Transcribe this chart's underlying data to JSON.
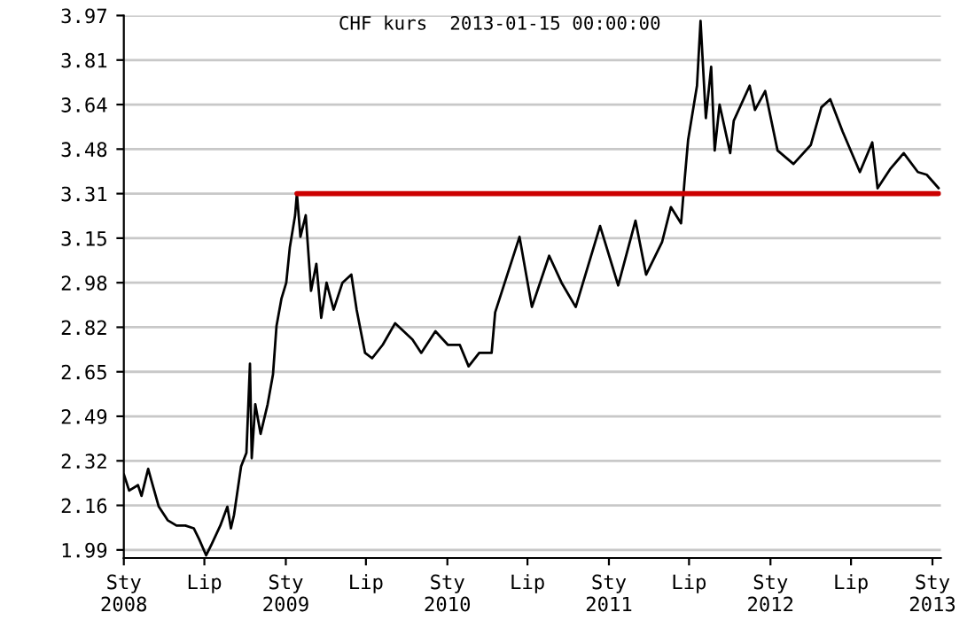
{
  "chart_data": {
    "type": "line",
    "title": "CHF kurs  2013-01-15 00:00:00",
    "series": [
      {
        "color": "#000000",
        "x": [
          "2008-01-01",
          "2008-01-13",
          "2008-02-02",
          "2008-02-10",
          "2008-02-25",
          "2008-03-08",
          "2008-03-20",
          "2008-04-09",
          "2008-04-29",
          "2008-05-19",
          "2008-06-07",
          "2008-06-19",
          "2008-07-05",
          "2008-07-17",
          "2008-08-06",
          "2008-08-22",
          "2008-08-30",
          "2008-09-06",
          "2008-09-22",
          "2008-10-04",
          "2008-10-12",
          "2008-10-16",
          "2008-10-24",
          "2008-11-05",
          "2008-11-21",
          "2008-12-03",
          "2008-12-11",
          "2008-12-22",
          "2009-01-02",
          "2009-01-10",
          "2009-01-22",
          "2009-01-26",
          "2009-02-03",
          "2009-02-15",
          "2009-02-27",
          "2009-03-11",
          "2009-03-22",
          "2009-04-03",
          "2009-04-19",
          "2009-05-09",
          "2009-05-29",
          "2009-06-10",
          "2009-06-29",
          "2009-07-15",
          "2009-08-08",
          "2009-09-05",
          "2009-10-14",
          "2009-11-03",
          "2009-12-05",
          "2010-01-02",
          "2010-01-29",
          "2010-02-18",
          "2010-03-14",
          "2010-04-11",
          "2010-04-19",
          "2010-06-13",
          "2010-07-11",
          "2010-08-19",
          "2010-09-16",
          "2010-10-18",
          "2010-12-12",
          "2011-01-22",
          "2011-03-02",
          "2011-03-26",
          "2011-05-01",
          "2011-05-21",
          "2011-06-13",
          "2011-06-21",
          "2011-06-29",
          "2011-07-19",
          "2011-07-27",
          "2011-08-08",
          "2011-08-20",
          "2011-08-28",
          "2011-09-08",
          "2011-10-02",
          "2011-10-10",
          "2011-11-15",
          "2011-11-27",
          "2011-12-20",
          "2012-01-17",
          "2012-02-22",
          "2012-04-01",
          "2012-04-25",
          "2012-05-15",
          "2012-06-12",
          "2012-07-21",
          "2012-08-18",
          "2012-08-30",
          "2012-09-27",
          "2012-10-28",
          "2012-11-29",
          "2012-12-19",
          "2013-01-15"
        ],
        "values": [
          2.27,
          2.21,
          2.23,
          2.19,
          2.29,
          2.22,
          2.15,
          2.1,
          2.08,
          2.08,
          2.07,
          2.03,
          1.97,
          2.01,
          2.08,
          2.15,
          2.07,
          2.12,
          2.3,
          2.35,
          2.68,
          2.33,
          2.53,
          2.42,
          2.53,
          2.64,
          2.82,
          2.92,
          2.98,
          3.11,
          3.23,
          3.31,
          3.15,
          3.23,
          2.95,
          3.05,
          2.85,
          2.98,
          2.88,
          2.98,
          3.01,
          2.88,
          2.72,
          2.7,
          2.75,
          2.83,
          2.77,
          2.72,
          2.8,
          2.75,
          2.75,
          2.67,
          2.72,
          2.72,
          2.87,
          3.15,
          2.89,
          3.08,
          2.98,
          2.89,
          3.19,
          2.97,
          3.21,
          3.01,
          3.13,
          3.26,
          3.2,
          3.36,
          3.51,
          3.71,
          3.95,
          3.59,
          3.78,
          3.47,
          3.64,
          3.46,
          3.58,
          3.71,
          3.62,
          3.69,
          3.47,
          3.42,
          3.49,
          3.63,
          3.66,
          3.54,
          3.39,
          3.5,
          3.33,
          3.4,
          3.46,
          3.39,
          3.38,
          3.33
        ]
      },
      {
        "color": "#cc0000",
        "x": [
          "2009-01-26",
          "2013-01-15"
        ],
        "values": [
          3.31,
          3.31
        ]
      }
    ],
    "xlim": [
      "2008-01-01",
      "2013-01-20"
    ],
    "xticks": [
      {
        "value": "2008-01-01",
        "label": "Sty\n2008"
      },
      {
        "value": "2008-07-01",
        "label": "Lip"
      },
      {
        "value": "2009-01-01",
        "label": "Sty\n2009"
      },
      {
        "value": "2009-07-01",
        "label": "Lip"
      },
      {
        "value": "2010-01-01",
        "label": "Sty\n2010"
      },
      {
        "value": "2010-07-01",
        "label": "Lip"
      },
      {
        "value": "2011-01-01",
        "label": "Sty\n2011"
      },
      {
        "value": "2011-07-01",
        "label": "Lip"
      },
      {
        "value": "2012-01-01",
        "label": "Sty\n2012"
      },
      {
        "value": "2012-07-01",
        "label": "Lip"
      },
      {
        "value": "2013-01-01",
        "label": "Sty\n2013"
      }
    ],
    "ylim": [
      1.96,
      3.97
    ],
    "yticks": [
      {
        "value": 1.99,
        "label": "1.99"
      },
      {
        "value": 2.155,
        "label": "2.16"
      },
      {
        "value": 2.32,
        "label": "2.32"
      },
      {
        "value": 2.485,
        "label": "2.49"
      },
      {
        "value": 2.65,
        "label": "2.65"
      },
      {
        "value": 2.815,
        "label": "2.82"
      },
      {
        "value": 2.98,
        "label": "2.98"
      },
      {
        "value": 3.145,
        "label": "3.15"
      },
      {
        "value": 3.31,
        "label": "3.31"
      },
      {
        "value": 3.475,
        "label": "3.48"
      },
      {
        "value": 3.64,
        "label": "3.64"
      },
      {
        "value": 3.805,
        "label": "3.81"
      },
      {
        "value": 3.97,
        "label": "3.97"
      }
    ],
    "grid": "y",
    "legend": false,
    "marker": "none",
    "line_style": "solid"
  }
}
